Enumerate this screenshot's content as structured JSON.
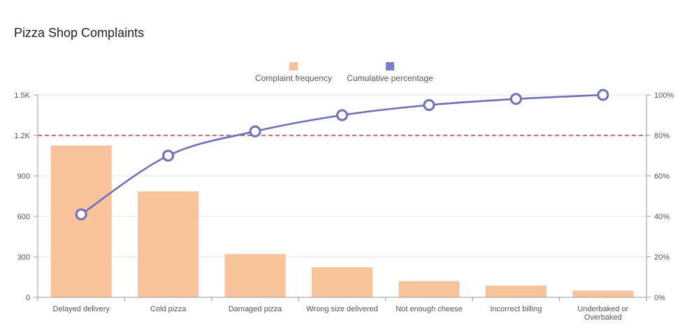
{
  "chart_data": {
    "type": "bar",
    "title": "Pizza Shop Complaints",
    "categories": [
      "Delayed delivery",
      "Cold pizza",
      "Damaged pizza",
      "Wrong size delivered",
      "Not enough cheese",
      "Incorrect billing",
      "Underbaked or Overbaked"
    ],
    "series": [
      {
        "name": "Complaint frequency",
        "type": "bar",
        "axis": "left",
        "values": [
          1125,
          785,
          320,
          222,
          120,
          87,
          50
        ]
      },
      {
        "name": "Cumulative percentage",
        "type": "line",
        "axis": "right",
        "values": [
          41,
          70,
          82,
          90,
          95,
          98,
          100
        ]
      }
    ],
    "y_left": {
      "ticks": [
        "0",
        "300",
        "600",
        "900",
        "1.2K",
        "1.5K"
      ],
      "ylim": [
        0,
        1500
      ]
    },
    "y_right": {
      "ticks": [
        "0%",
        "20%",
        "40%",
        "60%",
        "80%",
        "100%"
      ],
      "ylim": [
        0,
        100
      ]
    },
    "threshold": {
      "value": 80,
      "axis": "right",
      "color": "#d9363e"
    },
    "legend_position": "top-center",
    "grid": true,
    "colors": {
      "bar": "#f8c39b",
      "line": "#6b6fc2",
      "threshold": "#d9363e"
    }
  }
}
